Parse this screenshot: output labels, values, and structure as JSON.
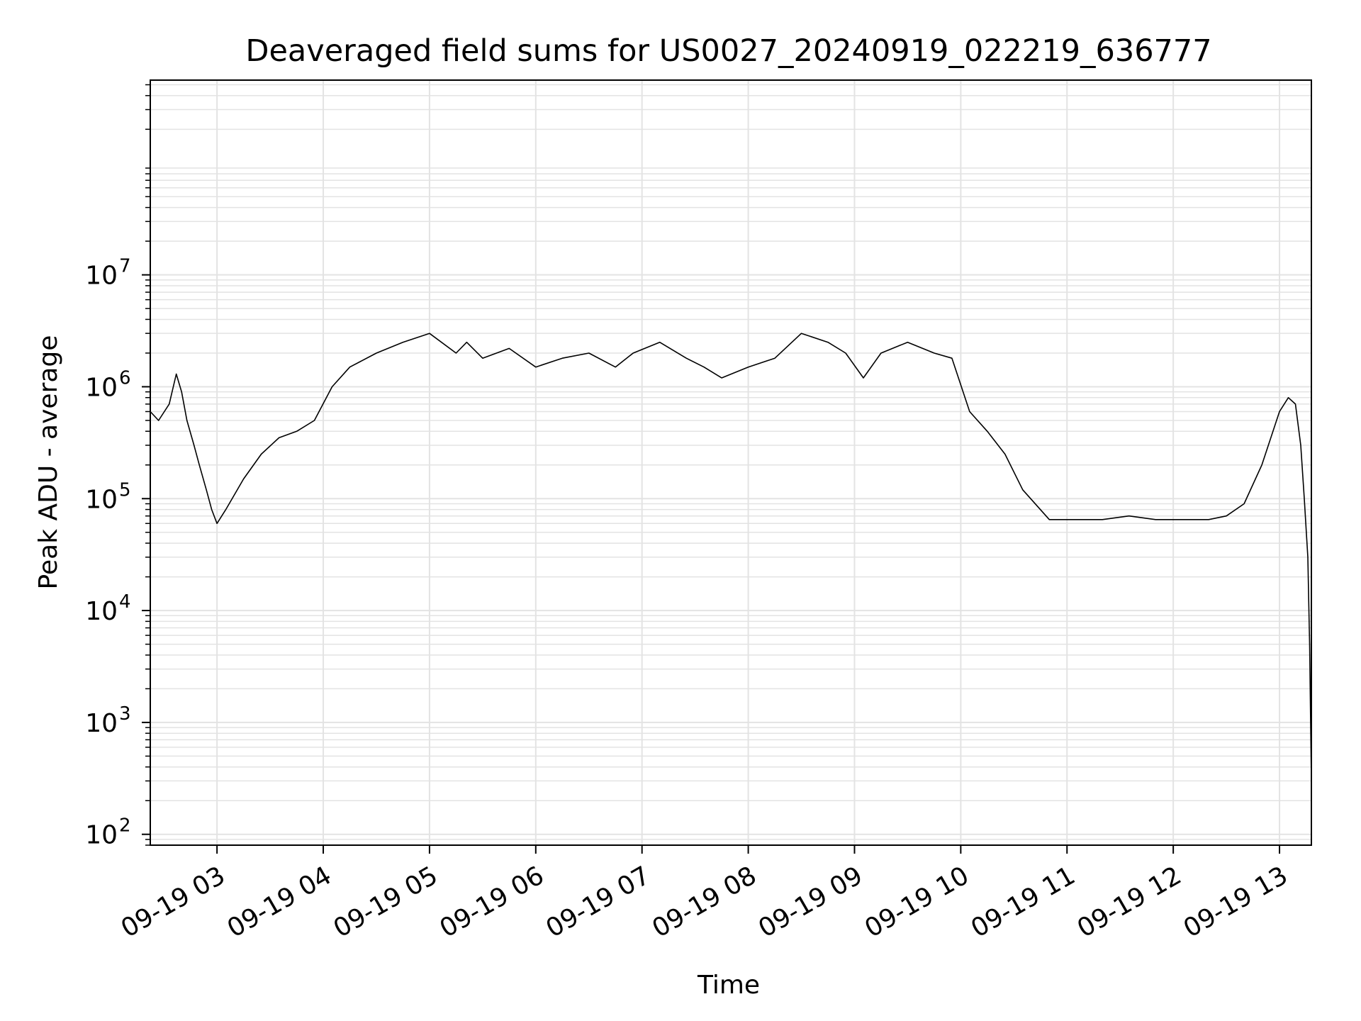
{
  "chart_data": {
    "type": "line",
    "title": "Deaveraged field sums for US0027_20240919_022219_636777",
    "xlabel": "Time",
    "ylabel": "Peak ADU - average",
    "yscale": "log",
    "ylim": [
      80,
      550000000
    ],
    "xlim": [
      "2024-09-19T02:22:19",
      "2024-09-19T13:18:00"
    ],
    "grid": true,
    "line_color": "#000000",
    "grid_color": "#e3e3e3",
    "x_ticks": [
      {
        "value": "2024-09-19T03:00:00",
        "label": "09-19 03"
      },
      {
        "value": "2024-09-19T04:00:00",
        "label": "09-19 04"
      },
      {
        "value": "2024-09-19T05:00:00",
        "label": "09-19 05"
      },
      {
        "value": "2024-09-19T06:00:00",
        "label": "09-19 06"
      },
      {
        "value": "2024-09-19T07:00:00",
        "label": "09-19 07"
      },
      {
        "value": "2024-09-19T08:00:00",
        "label": "09-19 08"
      },
      {
        "value": "2024-09-19T09:00:00",
        "label": "09-19 09"
      },
      {
        "value": "2024-09-19T10:00:00",
        "label": "09-19 10"
      },
      {
        "value": "2024-09-19T11:00:00",
        "label": "09-19 11"
      },
      {
        "value": "2024-09-19T12:00:00",
        "label": "09-19 12"
      },
      {
        "value": "2024-09-19T13:00:00",
        "label": "09-19 13"
      }
    ],
    "y_ticks": [
      {
        "value": 100,
        "base": "10",
        "exp": "2"
      },
      {
        "value": 1000,
        "base": "10",
        "exp": "3"
      },
      {
        "value": 10000,
        "base": "10",
        "exp": "4"
      },
      {
        "value": 100000,
        "base": "10",
        "exp": "5"
      },
      {
        "value": 1000000,
        "base": "10",
        "exp": "6"
      },
      {
        "value": 10000000,
        "base": "10",
        "exp": "7"
      }
    ],
    "series": [
      {
        "x": [
          "2024-09-19T02:22:19",
          "2024-09-19T02:27:00",
          "2024-09-19T02:33:00",
          "2024-09-19T02:37:00",
          "2024-09-19T02:40:00",
          "2024-09-19T02:43:00",
          "2024-09-19T02:47:00",
          "2024-09-19T02:50:00",
          "2024-09-19T02:54:00",
          "2024-09-19T02:57:00",
          "2024-09-19T03:00:00",
          "2024-09-19T03:05:00",
          "2024-09-19T03:15:00",
          "2024-09-19T03:25:00",
          "2024-09-19T03:35:00",
          "2024-09-19T03:45:00",
          "2024-09-19T03:55:00",
          "2024-09-19T04:05:00",
          "2024-09-19T04:15:00",
          "2024-09-19T04:30:00",
          "2024-09-19T04:45:00",
          "2024-09-19T05:00:00",
          "2024-09-19T05:15:00",
          "2024-09-19T05:21:00",
          "2024-09-19T05:30:00",
          "2024-09-19T05:45:00",
          "2024-09-19T06:00:00",
          "2024-09-19T06:15:00",
          "2024-09-19T06:30:00",
          "2024-09-19T06:45:00",
          "2024-09-19T06:55:00",
          "2024-09-19T07:10:00",
          "2024-09-19T07:25:00",
          "2024-09-19T07:35:00",
          "2024-09-19T07:45:00",
          "2024-09-19T08:00:00",
          "2024-09-19T08:15:00",
          "2024-09-19T08:30:00",
          "2024-09-19T08:45:00",
          "2024-09-19T08:55:00",
          "2024-09-19T09:05:00",
          "2024-09-19T09:15:00",
          "2024-09-19T09:30:00",
          "2024-09-19T09:45:00",
          "2024-09-19T09:55:00",
          "2024-09-19T10:05:00",
          "2024-09-19T10:15:00",
          "2024-09-19T10:25:00",
          "2024-09-19T10:35:00",
          "2024-09-19T10:50:00",
          "2024-09-19T11:05:00",
          "2024-09-19T11:20:00",
          "2024-09-19T11:35:00",
          "2024-09-19T11:50:00",
          "2024-09-19T12:05:00",
          "2024-09-19T12:20:00",
          "2024-09-19T12:30:00",
          "2024-09-19T12:40:00",
          "2024-09-19T12:50:00",
          "2024-09-19T13:00:00",
          "2024-09-19T13:05:00",
          "2024-09-19T13:09:00",
          "2024-09-19T13:12:00",
          "2024-09-19T13:14:00",
          "2024-09-19T13:16:00",
          "2024-09-19T13:17:00",
          "2024-09-19T13:18:00"
        ],
        "y": [
          600000,
          500000,
          700000,
          1300000,
          900000,
          500000,
          300000,
          200000,
          120000,
          80000,
          60000,
          80000,
          150000,
          250000,
          350000,
          400000,
          500000,
          1000000,
          1500000,
          2000000,
          2500000,
          3000000,
          2000000,
          2500000,
          1800000,
          2200000,
          1500000,
          1800000,
          2000000,
          1500000,
          2000000,
          2500000,
          1800000,
          1500000,
          1200000,
          1500000,
          1800000,
          3000000,
          2500000,
          2000000,
          1200000,
          2000000,
          2500000,
          2000000,
          1800000,
          600000,
          400000,
          250000,
          120000,
          65000,
          65000,
          65000,
          70000,
          65000,
          65000,
          65000,
          70000,
          90000,
          200000,
          600000,
          800000,
          700000,
          300000,
          100000,
          30000,
          5000,
          300
        ]
      }
    ]
  }
}
